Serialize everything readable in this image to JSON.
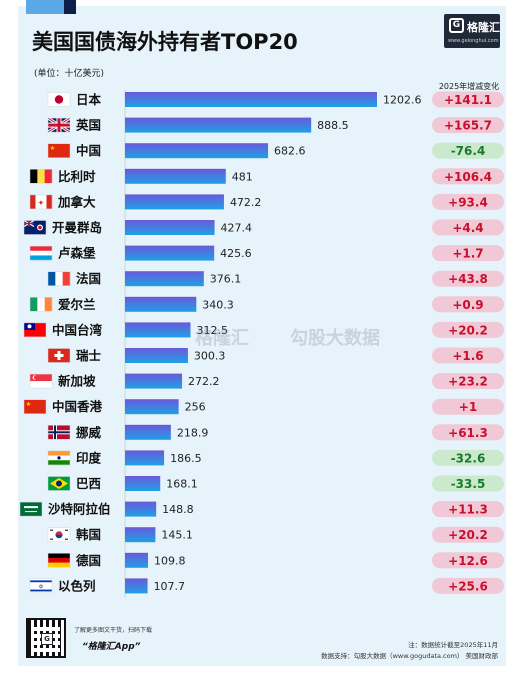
{
  "title": "美国国债海外持有者TOP20",
  "unit": "(单位：十亿美元)",
  "change_header": "2025年增减变化",
  "watermark_brand": "格隆汇",
  "watermark_source": "勾股大数据",
  "logo": {
    "name": "格隆汇",
    "url": "www.gelonghui.com"
  },
  "footer": {
    "scan_text": "了解更多图文干货，扫码下载",
    "app_name": "“格隆汇App”",
    "note": "注：数据统计截至2025年11月",
    "data_support": "数据支持：勾股大数据（www.gogudata.com） 美国财政部"
  },
  "colors": {
    "bar_start": "#6a5ad8",
    "bar_end": "#1fa0e8",
    "pos_pill": "#f1c9d6",
    "neg_pill": "#cbe9cd",
    "pos_text": "#c8102e",
    "neg_text": "#1a7a2e",
    "card_bg": "#e6f3fb"
  },
  "chart_data": {
    "type": "bar",
    "orientation": "horizontal",
    "title": "美国国债海外持有者TOP20",
    "unit": "(单位：十亿美元)",
    "categories": [
      "日本",
      "英国",
      "中国",
      "比利时",
      "加拿大",
      "开曼群岛",
      "卢森堡",
      "法国",
      "爱尔兰",
      "中国台湾",
      "瑞士",
      "新加坡",
      "中国香港",
      "挪威",
      "印度",
      "巴西",
      "沙特阿拉伯",
      "韩国",
      "德国",
      "以色列"
    ],
    "flags": [
      "japan-flag-icon",
      "uk-flag-icon",
      "china-flag-icon",
      "belgium-flag-icon",
      "canada-flag-icon",
      "cayman-flag-icon",
      "luxembourg-flag-icon",
      "france-flag-icon",
      "ireland-flag-icon",
      "taiwan-flag-icon",
      "switzerland-flag-icon",
      "singapore-flag-icon",
      "hongkong-flag-icon",
      "norway-flag-icon",
      "india-flag-icon",
      "brazil-flag-icon",
      "saudi-flag-icon",
      "korea-flag-icon",
      "germany-flag-icon",
      "israel-flag-icon"
    ],
    "values": [
      1202.6,
      888.5,
      682.6,
      481,
      472.2,
      427.4,
      425.6,
      376.1,
      340.3,
      312.5,
      300.3,
      272.2,
      256,
      218.9,
      186.5,
      168.1,
      148.8,
      145.1,
      109.8,
      107.7
    ],
    "change_labels": [
      "+141.1",
      "+165.7",
      "-76.4",
      "+106.4",
      "+93.4",
      "+4.4",
      "+1.7",
      "+43.8",
      "+0.9",
      "+20.2",
      "+1.6",
      "+23.2",
      "+1",
      "+61.3",
      "-32.6",
      "-33.5",
      "+11.3",
      "+20.2",
      "+12.6",
      "+25.6"
    ],
    "changes": [
      141.1,
      165.7,
      -76.4,
      106.4,
      93.4,
      4.4,
      1.7,
      43.8,
      0.9,
      20.2,
      1.6,
      23.2,
      1,
      61.3,
      -32.6,
      -33.5,
      11.3,
      20.2,
      12.6,
      25.6
    ],
    "xlim": [
      0,
      1202.6
    ],
    "grid": false,
    "legend": "none"
  }
}
